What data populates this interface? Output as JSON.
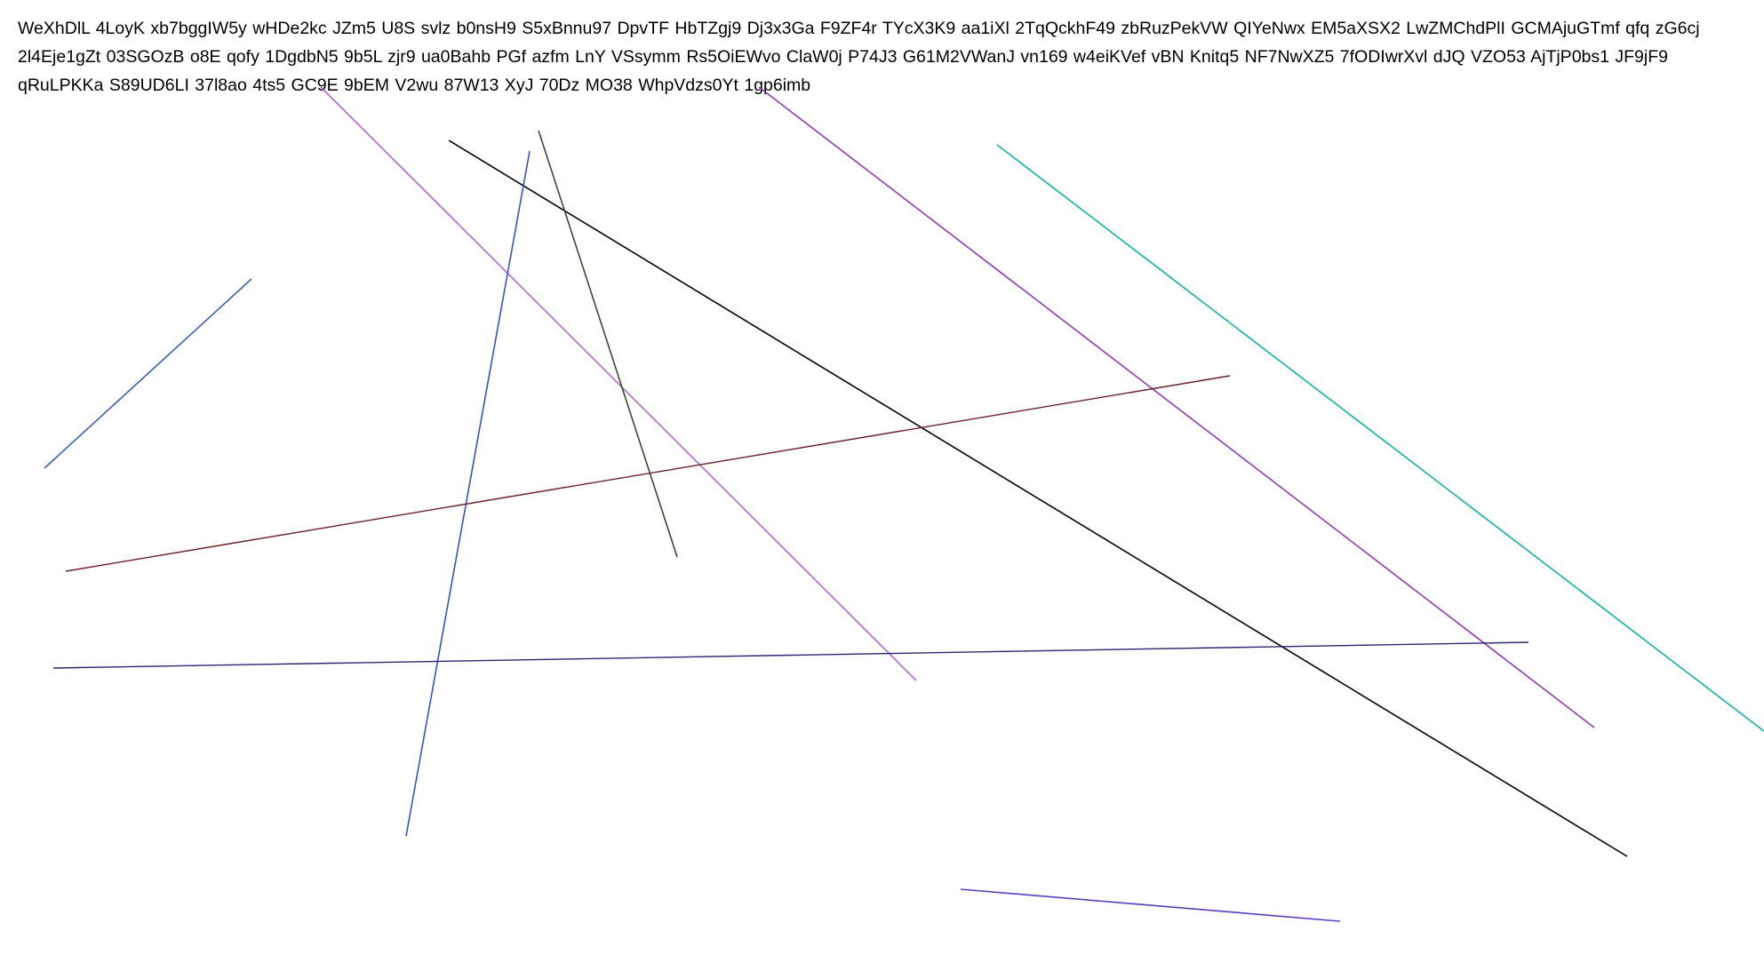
{
  "text": {
    "lines": [
      "WeXhDlL 4LoyK xb7bggIW5y wHDe2kc JZm5 U8S svlz b0nsH9 S5xBnnu97 DpvTF HbTZgj9 Dj3x3Ga F9ZF4r TYcX3K9 aa1iXl 2TqQckhF49 zbRuzPekVW QIYeNwx EM5aXSX2 LwZMChdPlI GCMAjuGTmf qfq zG6cj",
      "2l4Eje1gZt 03SGOzB o8E qofy 1DgdbN5 9b5L zjr9 ua0Bahb PGf azfm LnY VSsymm Rs5OiEWvo ClaW0j P74J3 G61M2VWanJ vn169 w4eiKVef vBN Knitq5 NF7NwXZ5 7fODIwrXvl dJQ VZO53 AjTjP0bs1 JF9jF9",
      "qRuLPKKa S89UD6LI 37l8ao 4ts5 GC9E 9bEM V2wu 87W13 XyJ 70Dz MO38 WhpVdzs0Yt 1gp6imb"
    ]
  },
  "lines": [
    {
      "color": "#3a62b4"
    },
    {
      "color": "#b366cc"
    },
    {
      "color": "#000000"
    },
    {
      "color": "#3a4a30"
    },
    {
      "color": "#3454c4"
    },
    {
      "color": "#8e3ab4"
    },
    {
      "color": "#14b0a6"
    },
    {
      "color": "#6e1e28"
    },
    {
      "color": "#2a2870"
    },
    {
      "color": "#5e3ac0"
    }
  ]
}
